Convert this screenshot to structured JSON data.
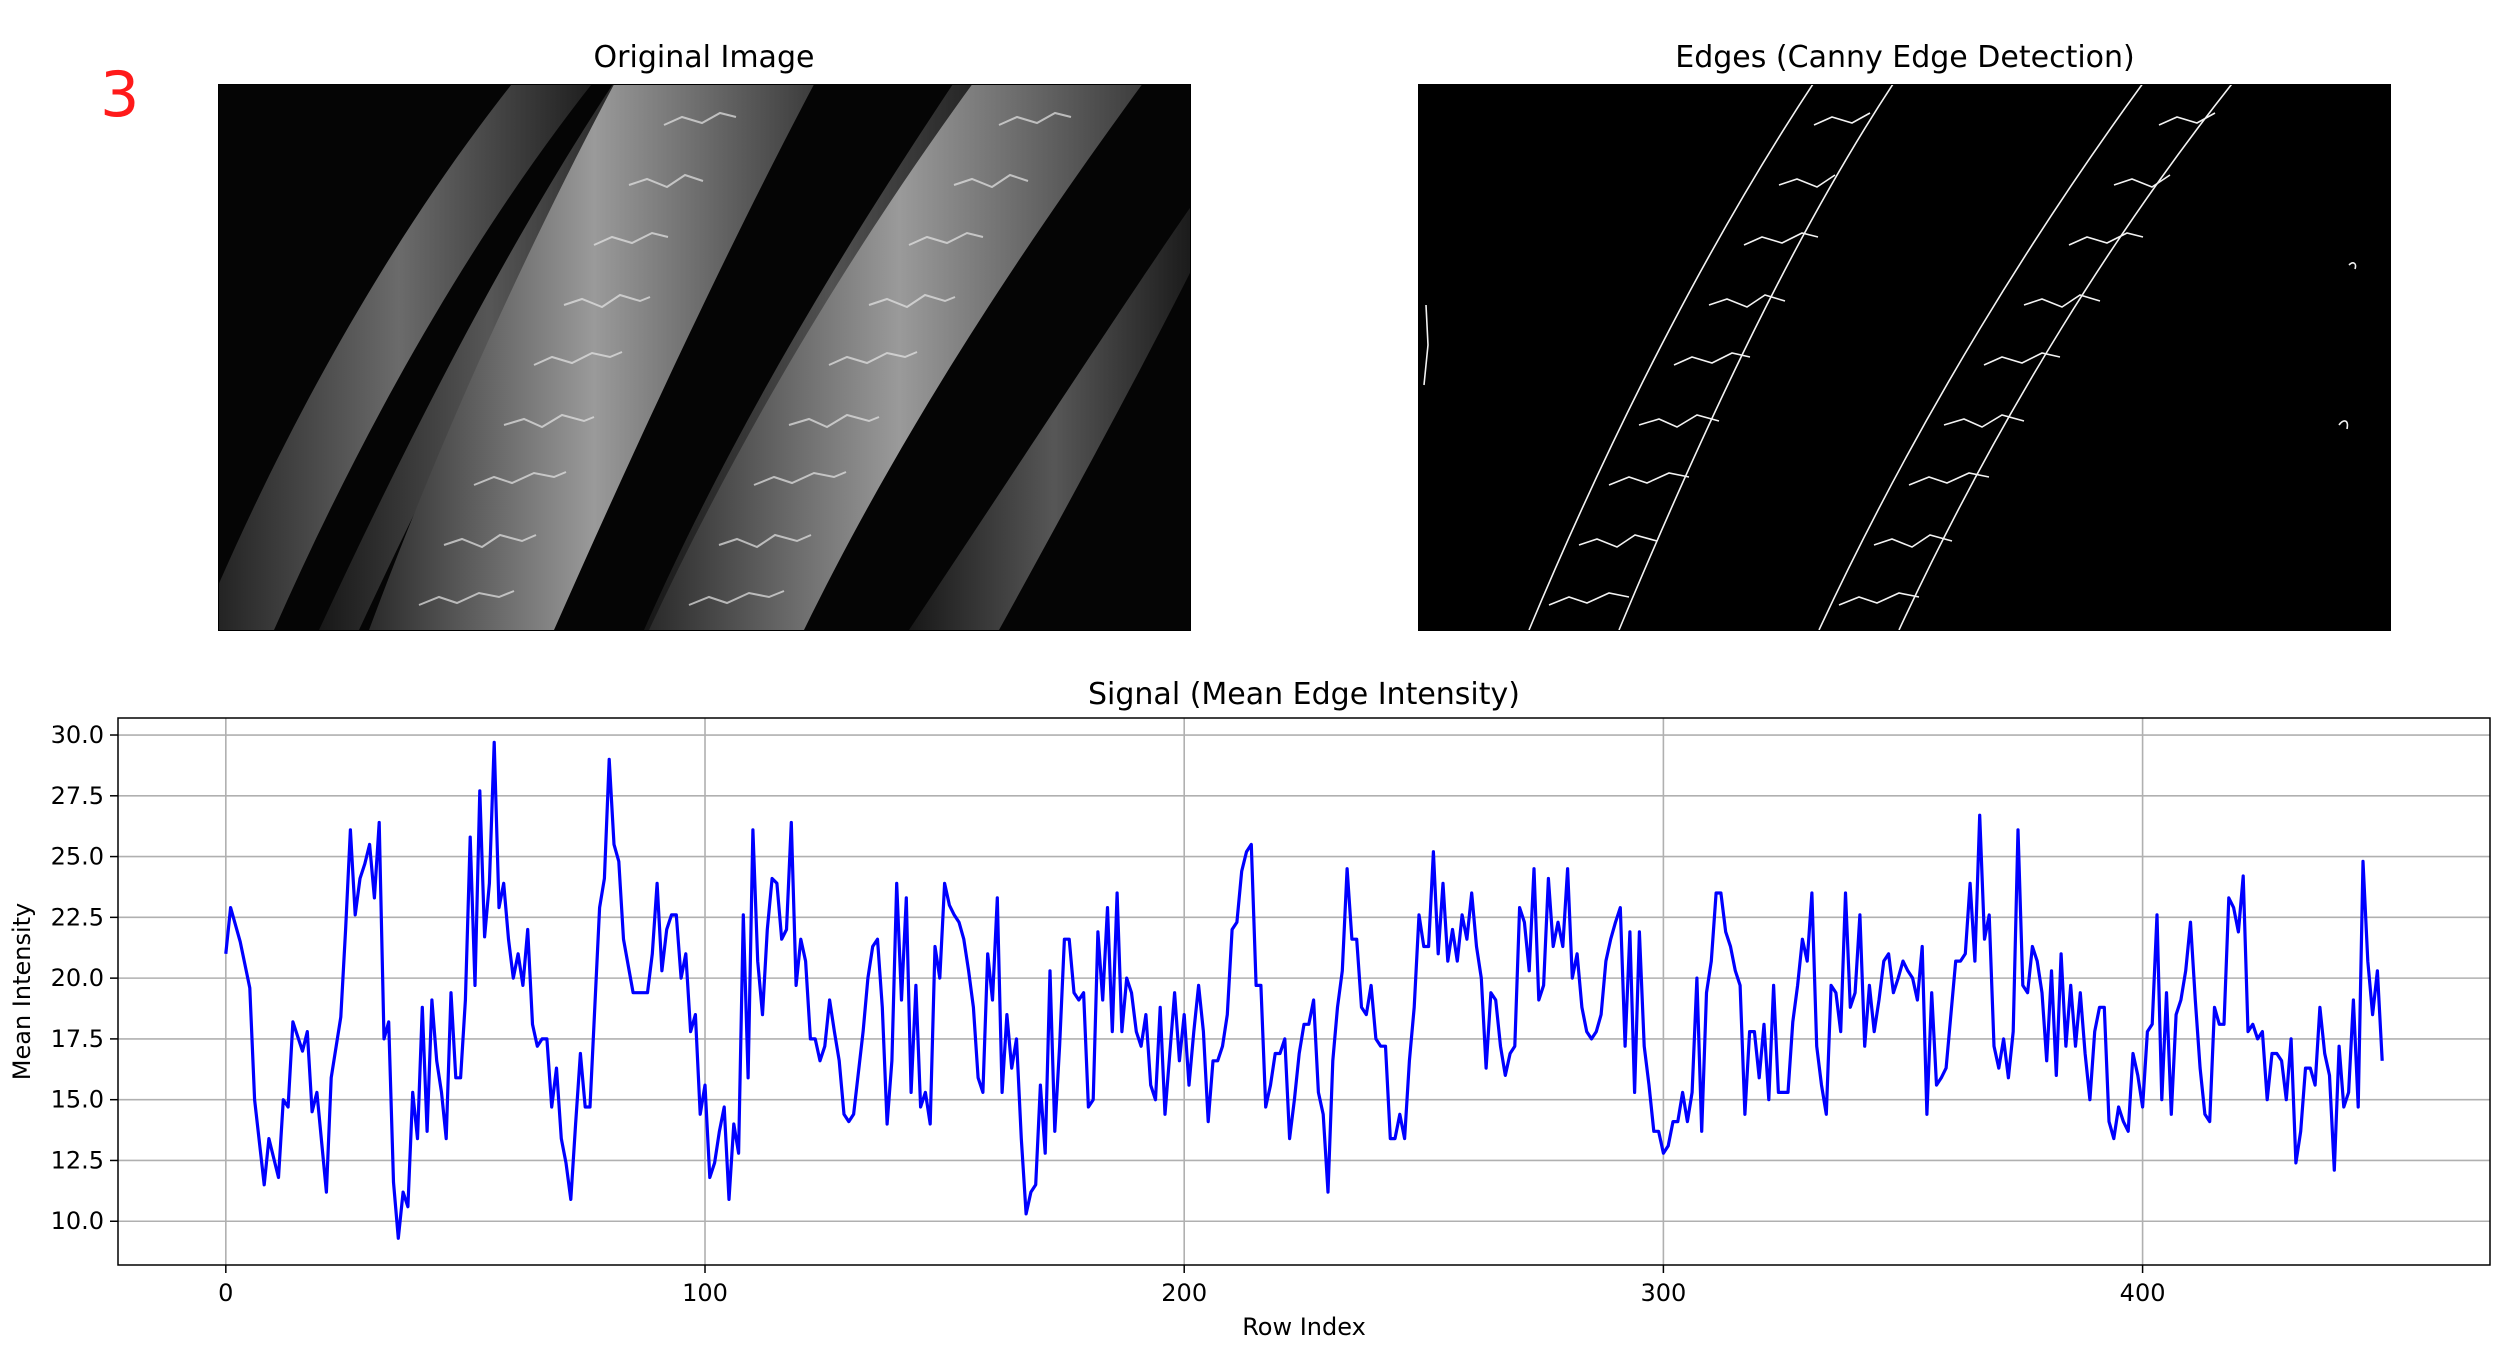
{
  "panel_number": "3",
  "original_panel": {
    "title": "Original Image"
  },
  "edges_panel": {
    "title": "Edges (Canny Edge Detection)"
  },
  "chart_data": {
    "type": "line",
    "title": "Signal (Mean Edge Intensity)",
    "xlabel": "Row Index",
    "ylabel": "Mean Intensity",
    "xlim": [
      -22.5,
      472.5
    ],
    "ylim": [
      8.2,
      30.7
    ],
    "xticks": [
      0,
      100,
      200,
      300,
      400
    ],
    "yticks": [
      10.0,
      12.5,
      15.0,
      17.5,
      20.0,
      22.5,
      25.0,
      27.5,
      30.0
    ],
    "grid": true,
    "color": "#0000ff",
    "anchors": [
      [
        0,
        21.0
      ],
      [
        1,
        22.9
      ],
      [
        3,
        21.5
      ],
      [
        5,
        19.6
      ],
      [
        6,
        15.0
      ],
      [
        8,
        11.5
      ],
      [
        9,
        13.4
      ],
      [
        11,
        11.8
      ],
      [
        12,
        15.0
      ],
      [
        13,
        14.7
      ],
      [
        14,
        18.2
      ],
      [
        16,
        17.0
      ],
      [
        17,
        17.8
      ],
      [
        18,
        14.5
      ],
      [
        19,
        15.3
      ],
      [
        21,
        11.2
      ],
      [
        22,
        15.9
      ],
      [
        24,
        18.4
      ],
      [
        25,
        22.0
      ],
      [
        26,
        26.1
      ],
      [
        27,
        22.6
      ],
      [
        28,
        24.1
      ],
      [
        29,
        24.7
      ],
      [
        30,
        25.5
      ],
      [
        31,
        23.3
      ],
      [
        32,
        26.4
      ],
      [
        33,
        17.5
      ],
      [
        34,
        18.2
      ],
      [
        35,
        11.6
      ],
      [
        36,
        9.3
      ],
      [
        37,
        11.2
      ],
      [
        38,
        10.6
      ],
      [
        39,
        15.3
      ],
      [
        40,
        13.4
      ],
      [
        41,
        18.8
      ],
      [
        42,
        13.7
      ],
      [
        43,
        19.1
      ],
      [
        44,
        16.6
      ],
      [
        45,
        15.3
      ],
      [
        46,
        13.4
      ],
      [
        47,
        19.4
      ],
      [
        48,
        15.9
      ],
      [
        49,
        15.9
      ],
      [
        50,
        19.1
      ],
      [
        51,
        25.8
      ],
      [
        52,
        19.7
      ],
      [
        53,
        27.7
      ],
      [
        54,
        21.7
      ],
      [
        55,
        23.9
      ],
      [
        56,
        29.7
      ],
      [
        57,
        22.9
      ],
      [
        58,
        23.9
      ],
      [
        59,
        21.6
      ],
      [
        60,
        20.0
      ],
      [
        61,
        21.0
      ],
      [
        62,
        19.7
      ],
      [
        63,
        22.0
      ],
      [
        64,
        18.1
      ],
      [
        65,
        17.2
      ],
      [
        66,
        17.5
      ],
      [
        67,
        17.5
      ],
      [
        68,
        14.7
      ],
      [
        69,
        16.3
      ],
      [
        70,
        13.4
      ],
      [
        71,
        12.4
      ],
      [
        72,
        10.9
      ],
      [
        73,
        14.0
      ],
      [
        74,
        16.9
      ],
      [
        75,
        14.7
      ],
      [
        76,
        14.7
      ],
      [
        77,
        18.8
      ],
      [
        78,
        22.9
      ],
      [
        79,
        24.1
      ],
      [
        80,
        29.0
      ],
      [
        81,
        25.5
      ],
      [
        82,
        24.8
      ],
      [
        83,
        21.6
      ],
      [
        85,
        19.4
      ],
      [
        88,
        19.4
      ],
      [
        89,
        21.0
      ],
      [
        90,
        23.9
      ],
      [
        91,
        20.3
      ],
      [
        92,
        22.0
      ],
      [
        93,
        22.6
      ],
      [
        94,
        22.6
      ],
      [
        95,
        20.0
      ],
      [
        96,
        21.0
      ],
      [
        97,
        17.8
      ],
      [
        98,
        18.5
      ],
      [
        99,
        14.4
      ],
      [
        100,
        15.6
      ],
      [
        101,
        11.8
      ],
      [
        102,
        12.4
      ],
      [
        103,
        13.7
      ],
      [
        104,
        14.7
      ],
      [
        105,
        10.9
      ],
      [
        106,
        14.0
      ],
      [
        107,
        12.8
      ],
      [
        108,
        22.6
      ],
      [
        109,
        15.9
      ],
      [
        110,
        26.1
      ],
      [
        111,
        20.7
      ],
      [
        112,
        18.5
      ],
      [
        113,
        22.0
      ],
      [
        114,
        24.1
      ],
      [
        115,
        23.9
      ],
      [
        116,
        21.6
      ],
      [
        117,
        22.0
      ],
      [
        118,
        26.4
      ],
      [
        119,
        19.7
      ],
      [
        120,
        21.6
      ],
      [
        121,
        20.7
      ],
      [
        122,
        17.5
      ],
      [
        123,
        17.5
      ],
      [
        124,
        16.6
      ],
      [
        125,
        17.2
      ],
      [
        126,
        19.1
      ],
      [
        127,
        17.8
      ],
      [
        128,
        16.6
      ],
      [
        129,
        14.4
      ],
      [
        130,
        14.1
      ],
      [
        131,
        14.4
      ],
      [
        133,
        17.8
      ],
      [
        134,
        20.0
      ],
      [
        135,
        21.3
      ],
      [
        136,
        21.6
      ],
      [
        137,
        18.8
      ],
      [
        138,
        14.0
      ],
      [
        139,
        16.6
      ],
      [
        140,
        23.9
      ],
      [
        141,
        19.1
      ],
      [
        142,
        23.3
      ],
      [
        143,
        15.3
      ],
      [
        144,
        19.7
      ],
      [
        145,
        14.7
      ],
      [
        146,
        15.3
      ],
      [
        147,
        14.0
      ],
      [
        148,
        21.3
      ],
      [
        149,
        20.0
      ],
      [
        150,
        23.9
      ],
      [
        151,
        23.0
      ],
      [
        152,
        22.6
      ],
      [
        153,
        22.3
      ],
      [
        154,
        21.6
      ],
      [
        155,
        20.3
      ],
      [
        156,
        18.8
      ],
      [
        157,
        15.9
      ],
      [
        158,
        15.3
      ],
      [
        159,
        21.0
      ],
      [
        160,
        19.1
      ],
      [
        161,
        23.3
      ],
      [
        162,
        15.3
      ],
      [
        163,
        18.5
      ],
      [
        164,
        16.3
      ],
      [
        165,
        17.5
      ],
      [
        166,
        13.4
      ],
      [
        167,
        10.3
      ],
      [
        168,
        11.2
      ],
      [
        169,
        11.5
      ],
      [
        170,
        15.6
      ],
      [
        171,
        12.8
      ],
      [
        172,
        20.3
      ],
      [
        173,
        13.7
      ],
      [
        174,
        17.2
      ],
      [
        175,
        21.6
      ],
      [
        176,
        21.6
      ],
      [
        177,
        19.4
      ],
      [
        178,
        19.1
      ],
      [
        179,
        19.4
      ],
      [
        180,
        14.7
      ],
      [
        181,
        15.0
      ],
      [
        182,
        21.9
      ],
      [
        183,
        19.1
      ],
      [
        184,
        22.9
      ],
      [
        185,
        17.8
      ],
      [
        186,
        23.5
      ],
      [
        187,
        17.8
      ],
      [
        188,
        20.0
      ],
      [
        189,
        19.4
      ],
      [
        190,
        17.8
      ],
      [
        191,
        17.2
      ],
      [
        192,
        18.5
      ],
      [
        193,
        15.6
      ],
      [
        194,
        15.0
      ],
      [
        195,
        18.8
      ],
      [
        196,
        14.4
      ],
      [
        197,
        16.9
      ],
      [
        198,
        19.4
      ],
      [
        199,
        16.6
      ],
      [
        200,
        18.5
      ],
      [
        201,
        15.6
      ],
      [
        202,
        17.8
      ],
      [
        203,
        19.7
      ],
      [
        204,
        17.8
      ],
      [
        205,
        14.1
      ],
      [
        206,
        16.6
      ],
      [
        207,
        16.6
      ],
      [
        208,
        17.2
      ],
      [
        209,
        18.5
      ],
      [
        210,
        22.0
      ],
      [
        211,
        22.3
      ],
      [
        212,
        24.4
      ],
      [
        213,
        25.2
      ],
      [
        214,
        25.5
      ],
      [
        215,
        19.7
      ],
      [
        216,
        19.7
      ],
      [
        217,
        14.7
      ],
      [
        218,
        15.6
      ],
      [
        219,
        16.9
      ],
      [
        220,
        16.9
      ],
      [
        221,
        17.5
      ],
      [
        222,
        13.4
      ],
      [
        223,
        15.0
      ],
      [
        224,
        16.9
      ],
      [
        225,
        18.1
      ],
      [
        226,
        18.1
      ],
      [
        227,
        19.1
      ],
      [
        228,
        15.3
      ],
      [
        229,
        14.4
      ],
      [
        230,
        11.2
      ],
      [
        231,
        16.6
      ],
      [
        232,
        18.8
      ],
      [
        233,
        20.3
      ],
      [
        234,
        24.5
      ],
      [
        235,
        21.6
      ],
      [
        236,
        21.6
      ],
      [
        237,
        18.8
      ],
      [
        238,
        18.5
      ],
      [
        239,
        19.7
      ],
      [
        240,
        17.5
      ],
      [
        241,
        17.2
      ],
      [
        242,
        17.2
      ],
      [
        243,
        13.4
      ],
      [
        244,
        13.4
      ],
      [
        245,
        14.4
      ],
      [
        246,
        13.4
      ],
      [
        247,
        16.6
      ],
      [
        248,
        18.8
      ],
      [
        249,
        22.6
      ],
      [
        250,
        21.3
      ],
      [
        251,
        21.3
      ],
      [
        252,
        25.2
      ],
      [
        253,
        21.0
      ],
      [
        254,
        23.9
      ],
      [
        255,
        20.7
      ],
      [
        256,
        22.0
      ],
      [
        257,
        20.7
      ],
      [
        258,
        22.6
      ],
      [
        259,
        21.6
      ],
      [
        260,
        23.5
      ],
      [
        261,
        21.3
      ],
      [
        262,
        20.0
      ],
      [
        263,
        16.3
      ],
      [
        264,
        19.4
      ],
      [
        265,
        19.1
      ],
      [
        266,
        17.2
      ],
      [
        267,
        16.0
      ],
      [
        268,
        16.9
      ],
      [
        269,
        17.2
      ],
      [
        270,
        22.9
      ],
      [
        271,
        22.3
      ],
      [
        272,
        20.3
      ],
      [
        273,
        24.5
      ],
      [
        274,
        19.1
      ],
      [
        275,
        19.7
      ],
      [
        276,
        24.1
      ],
      [
        277,
        21.3
      ],
      [
        278,
        22.3
      ],
      [
        279,
        21.3
      ],
      [
        280,
        24.5
      ],
      [
        281,
        20.0
      ],
      [
        282,
        21.0
      ],
      [
        283,
        18.8
      ],
      [
        284,
        17.8
      ],
      [
        285,
        17.5
      ],
      [
        286,
        17.8
      ],
      [
        287,
        18.5
      ],
      [
        288,
        20.7
      ],
      [
        289,
        21.6
      ],
      [
        290,
        22.3
      ],
      [
        291,
        22.9
      ],
      [
        292,
        17.2
      ],
      [
        293,
        21.9
      ],
      [
        294,
        15.3
      ],
      [
        295,
        21.9
      ],
      [
        296,
        17.2
      ],
      [
        297,
        15.6
      ],
      [
        298,
        13.7
      ],
      [
        299,
        13.7
      ],
      [
        300,
        12.8
      ],
      [
        301,
        13.1
      ],
      [
        302,
        14.1
      ],
      [
        303,
        14.1
      ],
      [
        304,
        15.3
      ],
      [
        305,
        14.1
      ],
      [
        306,
        15.3
      ],
      [
        307,
        20.0
      ],
      [
        308,
        13.7
      ],
      [
        309,
        19.4
      ],
      [
        310,
        20.7
      ],
      [
        311,
        23.5
      ],
      [
        312,
        23.5
      ],
      [
        313,
        21.9
      ],
      [
        314,
        21.3
      ],
      [
        315,
        20.3
      ],
      [
        316,
        19.7
      ],
      [
        317,
        14.4
      ],
      [
        318,
        17.8
      ],
      [
        319,
        17.8
      ],
      [
        320,
        15.9
      ],
      [
        321,
        18.1
      ],
      [
        322,
        15.0
      ],
      [
        323,
        19.7
      ],
      [
        324,
        15.3
      ],
      [
        326,
        15.3
      ],
      [
        327,
        18.2
      ],
      [
        328,
        19.7
      ],
      [
        329,
        21.6
      ],
      [
        330,
        20.7
      ],
      [
        331,
        23.5
      ],
      [
        332,
        17.2
      ],
      [
        333,
        15.6
      ],
      [
        334,
        14.4
      ],
      [
        335,
        19.7
      ],
      [
        336,
        19.4
      ],
      [
        337,
        17.8
      ],
      [
        338,
        23.5
      ],
      [
        339,
        18.8
      ],
      [
        340,
        19.4
      ],
      [
        341,
        22.6
      ],
      [
        342,
        17.2
      ],
      [
        343,
        19.7
      ],
      [
        344,
        17.8
      ],
      [
        345,
        19.1
      ],
      [
        346,
        20.7
      ],
      [
        347,
        21.0
      ],
      [
        348,
        19.4
      ],
      [
        349,
        20.0
      ],
      [
        350,
        20.7
      ],
      [
        351,
        20.3
      ],
      [
        352,
        20.0
      ],
      [
        353,
        19.1
      ],
      [
        354,
        21.3
      ],
      [
        355,
        14.4
      ],
      [
        356,
        19.4
      ],
      [
        357,
        15.6
      ],
      [
        358,
        15.9
      ],
      [
        359,
        16.3
      ],
      [
        360,
        18.5
      ],
      [
        361,
        20.7
      ],
      [
        362,
        20.7
      ],
      [
        363,
        21.0
      ],
      [
        364,
        23.9
      ],
      [
        365,
        20.7
      ],
      [
        366,
        26.7
      ],
      [
        367,
        21.6
      ],
      [
        368,
        22.6
      ],
      [
        369,
        17.2
      ],
      [
        370,
        16.3
      ],
      [
        371,
        17.5
      ],
      [
        372,
        15.9
      ],
      [
        373,
        17.8
      ],
      [
        374,
        26.1
      ],
      [
        375,
        19.7
      ],
      [
        376,
        19.4
      ],
      [
        377,
        21.3
      ],
      [
        378,
        20.7
      ],
      [
        379,
        19.4
      ],
      [
        380,
        16.6
      ],
      [
        381,
        20.3
      ],
      [
        382,
        16.0
      ],
      [
        383,
        21.0
      ],
      [
        384,
        17.2
      ],
      [
        385,
        19.7
      ],
      [
        386,
        17.2
      ],
      [
        387,
        19.4
      ],
      [
        388,
        16.9
      ],
      [
        389,
        15.0
      ],
      [
        390,
        17.8
      ],
      [
        391,
        18.8
      ],
      [
        392,
        18.8
      ],
      [
        393,
        14.1
      ],
      [
        394,
        13.4
      ],
      [
        395,
        14.7
      ],
      [
        396,
        14.1
      ],
      [
        397,
        13.7
      ],
      [
        398,
        16.9
      ],
      [
        399,
        16.0
      ],
      [
        400,
        14.7
      ],
      [
        401,
        17.8
      ],
      [
        402,
        18.1
      ],
      [
        403,
        22.6
      ],
      [
        404,
        15.0
      ],
      [
        405,
        19.4
      ],
      [
        406,
        14.4
      ],
      [
        407,
        18.5
      ],
      [
        408,
        19.1
      ],
      [
        409,
        20.3
      ],
      [
        410,
        22.3
      ],
      [
        411,
        19.1
      ],
      [
        412,
        16.3
      ],
      [
        413,
        14.4
      ],
      [
        414,
        14.1
      ],
      [
        415,
        18.8
      ],
      [
        416,
        18.1
      ],
      [
        417,
        18.1
      ],
      [
        418,
        23.3
      ],
      [
        419,
        22.9
      ],
      [
        420,
        21.9
      ],
      [
        421,
        24.2
      ],
      [
        422,
        17.8
      ],
      [
        423,
        18.1
      ],
      [
        424,
        17.5
      ],
      [
        425,
        17.8
      ],
      [
        426,
        15.0
      ],
      [
        427,
        16.9
      ],
      [
        428,
        16.9
      ],
      [
        429,
        16.6
      ],
      [
        430,
        15.0
      ],
      [
        431,
        17.5
      ],
      [
        432,
        12.4
      ],
      [
        433,
        13.7
      ],
      [
        434,
        16.3
      ],
      [
        435,
        16.3
      ],
      [
        436,
        15.6
      ],
      [
        437,
        18.8
      ],
      [
        438,
        16.9
      ],
      [
        439,
        16.0
      ],
      [
        440,
        12.1
      ],
      [
        441,
        17.2
      ],
      [
        442,
        14.7
      ],
      [
        443,
        15.3
      ],
      [
        444,
        19.1
      ],
      [
        445,
        14.7
      ],
      [
        446,
        24.8
      ],
      [
        447,
        20.7
      ],
      [
        448,
        18.5
      ],
      [
        449,
        20.3
      ],
      [
        450,
        16.6
      ]
    ]
  }
}
